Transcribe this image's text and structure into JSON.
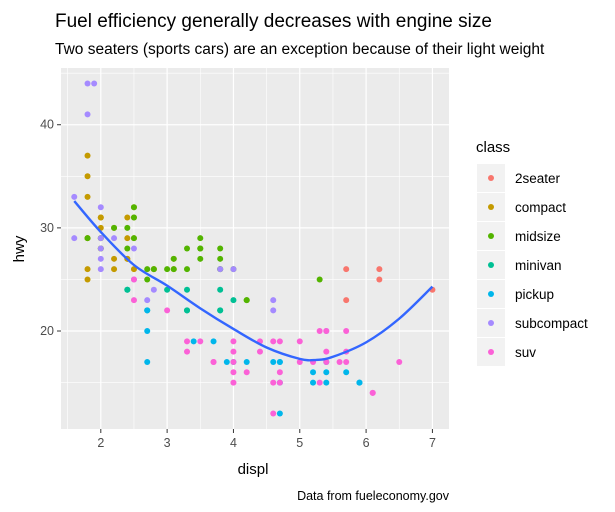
{
  "chart_data": {
    "type": "scatter",
    "title": "Fuel efficiency generally decreases with engine size",
    "subtitle": "Two seaters (sports cars) are an exception because of their light weight",
    "caption": "Data from fueleconomy.gov",
    "xlabel": "displ",
    "ylabel": "hwy",
    "xlim": [
      1.4,
      7.25
    ],
    "ylim": [
      10.5,
      45.5
    ],
    "x_ticks": [
      2,
      3,
      4,
      5,
      6,
      7
    ],
    "y_ticks": [
      20,
      30,
      40
    ],
    "grid": true,
    "legend": {
      "title": "class",
      "placement": "right",
      "entries": [
        "2seater",
        "compact",
        "midsize",
        "minivan",
        "pickup",
        "subcompact",
        "suv"
      ]
    },
    "colors": {
      "2seater": "#F8766D",
      "compact": "#C49A00",
      "midsize": "#53B400",
      "minivan": "#00C094",
      "pickup": "#00B6EB",
      "subcompact": "#A58AFF",
      "suv": "#FB61D7",
      "smooth": "#3366FF",
      "panel": "#EBEBEB",
      "grid": "#FFFFFF"
    },
    "series": [
      {
        "name": "2seater",
        "points": [
          [
            5.7,
            26
          ],
          [
            5.7,
            23
          ],
          [
            6.2,
            26
          ],
          [
            6.2,
            25
          ],
          [
            7.0,
            24
          ]
        ]
      },
      {
        "name": "compact",
        "points": [
          [
            1.8,
            29
          ],
          [
            1.8,
            29
          ],
          [
            2.0,
            31
          ],
          [
            2.0,
            30
          ],
          [
            2.8,
            26
          ],
          [
            2.8,
            26
          ],
          [
            3.1,
            27
          ],
          [
            1.8,
            26
          ],
          [
            1.8,
            25
          ],
          [
            2.0,
            28
          ],
          [
            2.0,
            29
          ],
          [
            2.4,
            29
          ],
          [
            2.4,
            31
          ],
          [
            2.2,
            26
          ],
          [
            2.2,
            27
          ],
          [
            2.5,
            29
          ],
          [
            2.5,
            26
          ],
          [
            1.8,
            37
          ],
          [
            1.8,
            35
          ],
          [
            1.8,
            33
          ],
          [
            2.0,
            31
          ],
          [
            2.4,
            27
          ],
          [
            3.1,
            26
          ],
          [
            2.5,
            31
          ],
          [
            2.5,
            32
          ],
          [
            2.2,
            30
          ],
          [
            2.4,
            27
          ]
        ]
      },
      {
        "name": "midsize",
        "points": [
          [
            2.4,
            30
          ],
          [
            2.5,
            32
          ],
          [
            2.5,
            31
          ],
          [
            3.0,
            26
          ],
          [
            3.1,
            27
          ],
          [
            3.1,
            26
          ],
          [
            2.0,
            29
          ],
          [
            2.2,
            30
          ],
          [
            2.4,
            28
          ],
          [
            2.8,
            26
          ],
          [
            3.3,
            28
          ],
          [
            3.3,
            26
          ],
          [
            3.5,
            27
          ],
          [
            3.5,
            28
          ],
          [
            3.8,
            26
          ],
          [
            3.8,
            27
          ],
          [
            3.8,
            28
          ],
          [
            4.0,
            26
          ],
          [
            5.3,
            25
          ],
          [
            3.5,
            29
          ],
          [
            3.5,
            28
          ],
          [
            2.5,
            29
          ],
          [
            2.7,
            26
          ],
          [
            2.7,
            25
          ],
          [
            3.8,
            26
          ],
          [
            1.8,
            29
          ],
          [
            2.0,
            28
          ],
          [
            4.2,
            23
          ],
          [
            4.2,
            23
          ]
        ]
      },
      {
        "name": "minivan",
        "points": [
          [
            2.4,
            24
          ],
          [
            3.0,
            24
          ],
          [
            3.3,
            22
          ],
          [
            3.3,
            22
          ],
          [
            3.3,
            24
          ],
          [
            3.8,
            24
          ],
          [
            3.8,
            22
          ],
          [
            3.8,
            22
          ],
          [
            4.0,
            23
          ],
          [
            2.4,
            24
          ],
          [
            2.7,
            22
          ]
        ]
      },
      {
        "name": "pickup",
        "points": [
          [
            2.7,
            20
          ],
          [
            2.7,
            22
          ],
          [
            3.7,
            19
          ],
          [
            3.9,
            17
          ],
          [
            4.7,
            17
          ],
          [
            4.7,
            17
          ],
          [
            4.7,
            15
          ],
          [
            5.2,
            16
          ],
          [
            5.2,
            15
          ],
          [
            5.7,
            16
          ],
          [
            5.9,
            15
          ],
          [
            4.6,
            17
          ],
          [
            5.4,
            15
          ],
          [
            5.4,
            16
          ],
          [
            2.7,
            17
          ],
          [
            3.4,
            19
          ],
          [
            4.0,
            17
          ],
          [
            4.2,
            17
          ],
          [
            4.7,
            12
          ],
          [
            5.4,
            17
          ],
          [
            5.9,
            15
          ]
        ]
      },
      {
        "name": "subcompact",
        "points": [
          [
            1.6,
            33
          ],
          [
            1.6,
            29
          ],
          [
            1.8,
            41
          ],
          [
            1.8,
            44
          ],
          [
            1.9,
            44
          ],
          [
            2.0,
            29
          ],
          [
            2.0,
            26
          ],
          [
            2.0,
            27
          ],
          [
            2.0,
            28
          ],
          [
            3.8,
            26
          ],
          [
            4.0,
            26
          ],
          [
            4.6,
            22
          ],
          [
            4.6,
            23
          ],
          [
            5.4,
            20
          ],
          [
            2.8,
            24
          ],
          [
            2.7,
            23
          ],
          [
            2.0,
            32
          ],
          [
            2.5,
            28
          ],
          [
            2.2,
            29
          ],
          [
            2.5,
            25
          ]
        ]
      },
      {
        "name": "suv",
        "points": [
          [
            5.3,
            20
          ],
          [
            5.3,
            15
          ],
          [
            5.7,
            20
          ],
          [
            6.5,
            17
          ],
          [
            3.7,
            17
          ],
          [
            4.0,
            19
          ],
          [
            4.7,
            19
          ],
          [
            5.2,
            17
          ],
          [
            5.7,
            18
          ],
          [
            4.6,
            19
          ],
          [
            5.4,
            18
          ],
          [
            4.0,
            17
          ],
          [
            4.6,
            15
          ],
          [
            5.0,
            17
          ],
          [
            4.2,
            16
          ],
          [
            4.4,
            18
          ],
          [
            5.4,
            20
          ],
          [
            4.7,
            15
          ],
          [
            6.1,
            14
          ],
          [
            2.5,
            23
          ],
          [
            3.3,
            19
          ],
          [
            4.0,
            18
          ],
          [
            4.0,
            15
          ],
          [
            3.0,
            22
          ],
          [
            3.5,
            19
          ],
          [
            4.7,
            16
          ],
          [
            5.4,
            17
          ],
          [
            5.6,
            17
          ],
          [
            4.6,
            12
          ],
          [
            5.0,
            19
          ],
          [
            5.7,
            17
          ],
          [
            2.5,
            25
          ],
          [
            3.3,
            18
          ],
          [
            4.4,
            19
          ],
          [
            6.1,
            14
          ],
          [
            3.7,
            17
          ],
          [
            4.0,
            16
          ]
        ]
      }
    ],
    "smooth": {
      "name": "",
      "x": [
        1.6,
        2.0,
        2.5,
        3.0,
        3.5,
        4.0,
        4.5,
        5.0,
        5.25,
        5.5,
        6.0,
        6.5,
        7.0
      ],
      "y": [
        32.6,
        29.6,
        26.4,
        24.4,
        22.2,
        20.2,
        18.4,
        17.3,
        17.2,
        17.5,
        18.9,
        21.2,
        24.3
      ]
    }
  }
}
